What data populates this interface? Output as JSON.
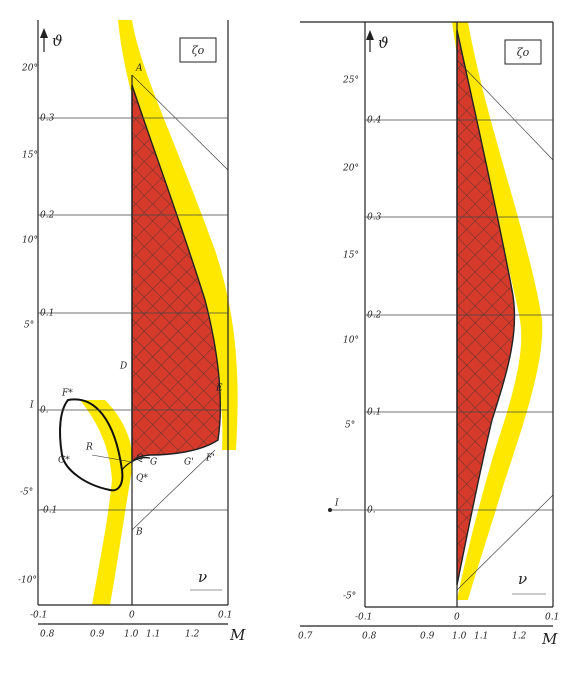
{
  "left_panel": {
    "axis_symbol": "ϑ",
    "box_label": "ζo",
    "y_labels": [
      "20°",
      "15°",
      "10°",
      "5°",
      "I",
      "-5°",
      "-10°"
    ],
    "grid_labels": [
      "0.3",
      "0.2",
      "0.1",
      "0.",
      "-0.1"
    ],
    "point_labels": [
      "A",
      "D",
      "E",
      "F*",
      "G*",
      "R",
      "Q",
      "G",
      "Q*",
      "G'",
      "F'",
      "B"
    ],
    "nu_labels": [
      "-0.1",
      "0",
      "0.1"
    ],
    "nu_symbol": "ν",
    "m_labels": [
      "0.8",
      "0.9",
      "1.0",
      "1.1",
      "1.2"
    ],
    "m_symbol": "M"
  },
  "right_panel": {
    "axis_symbol": "ϑ",
    "box_label": "ζo",
    "y_labels": [
      "25°",
      "20°",
      "15°",
      "10°",
      "5°",
      "-5°"
    ],
    "grid_labels": [
      "0.4",
      "0.3",
      "0.2",
      "0.1",
      "0."
    ],
    "point_labels": [
      "I"
    ],
    "nu_labels": [
      "-0.1",
      "0",
      "0.1"
    ],
    "nu_symbol": "ν",
    "m_labels": [
      "0.7",
      "0.8",
      "0.9",
      "1.0",
      "1.1",
      "1.2"
    ],
    "m_symbol": "M"
  }
}
